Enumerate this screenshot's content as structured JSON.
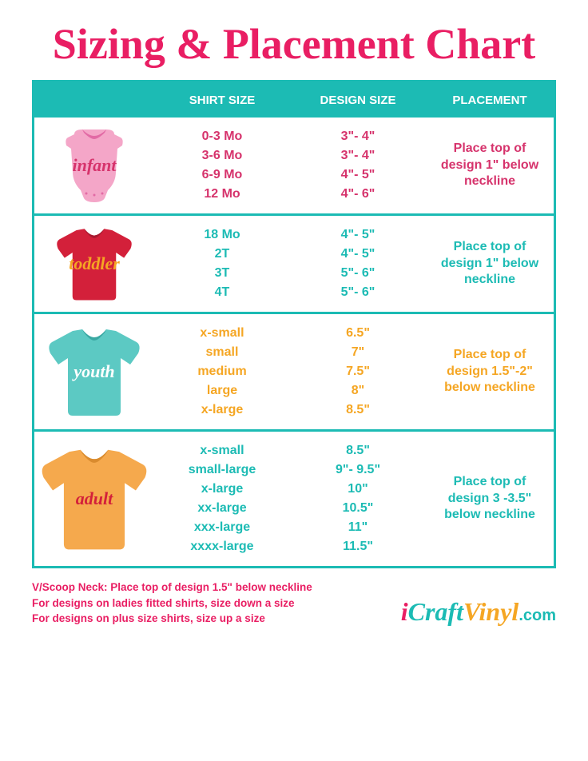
{
  "title": "Sizing & Placement Chart",
  "headers": {
    "shirt_size": "SHIRT SIZE",
    "design_size": "DESIGN SIZE",
    "placement": "PLACEMENT"
  },
  "rows": [
    {
      "label": "infant",
      "label_color": "#d6336c",
      "text_color": "#d6336c",
      "shirt_sizes": [
        "0-3 Mo",
        "3-6 Mo",
        "6-9 Mo",
        "12 Mo"
      ],
      "design_sizes": [
        "3\"- 4\"",
        "3\"- 4\"",
        "4\"- 5\"",
        "4\"- 6\""
      ],
      "placement": "Place top of design 1\" below neckline",
      "shirt_fill": "#f4a6c8",
      "shirt_accent": "#e26aa5",
      "shirt_type": "onesie",
      "shirt_w": 90,
      "shirt_h": 95
    },
    {
      "label": "toddler",
      "label_color": "#f5a623",
      "text_color": "#1cbbb4",
      "shirt_sizes": [
        "18 Mo",
        "2T",
        "3T",
        "4T"
      ],
      "design_sizes": [
        "4\"- 5\"",
        "4\"- 5\"",
        "5\"- 6\"",
        "5\"- 6\""
      ],
      "placement": "Place top of design 1\" below neckline",
      "shirt_fill": "#d3203a",
      "shirt_accent": "#a81a30",
      "shirt_type": "tshirt",
      "shirt_w": 110,
      "shirt_h": 95
    },
    {
      "label": "youth",
      "label_color": "#ffffff",
      "text_color": "#f5a623",
      "shirt_sizes": [
        "x-small",
        "small",
        "medium",
        "large",
        "x-large"
      ],
      "design_sizes": [
        "6.5\"",
        "7\"",
        "7.5\"",
        "8\"",
        "8.5\""
      ],
      "placement": "Place top of design 1.5\"-2\" below neckline",
      "shirt_fill": "#5cc9c3",
      "shirt_accent": "#3aa8a2",
      "shirt_type": "tshirt",
      "shirt_w": 130,
      "shirt_h": 115
    },
    {
      "label": "adult",
      "label_color": "#d3203a",
      "text_color": "#1cbbb4",
      "shirt_sizes": [
        "x-small",
        "small-large",
        "x-large",
        "xx-large",
        "xxx-large",
        "xxxx-large"
      ],
      "design_sizes": [
        "8.5\"",
        "9\"- 9.5\"",
        "10\"",
        "10.5\"",
        "11\"",
        "11.5\""
      ],
      "placement": "Place top of design 3 -3.5\" below neckline",
      "shirt_fill": "#f5a94d",
      "shirt_accent": "#d98b2e",
      "shirt_type": "tshirt",
      "shirt_w": 150,
      "shirt_h": 135
    }
  ],
  "notes": [
    "V/Scoop Neck: Place top of design 1.5\" below neckline",
    "For designs on ladies fitted shirts, size down a size",
    "For designs on plus size shirts, size up a size"
  ],
  "logo": {
    "i": "i",
    "craft": "Craft",
    "v": "V",
    "inyl": "inyl",
    "com": ".com"
  }
}
